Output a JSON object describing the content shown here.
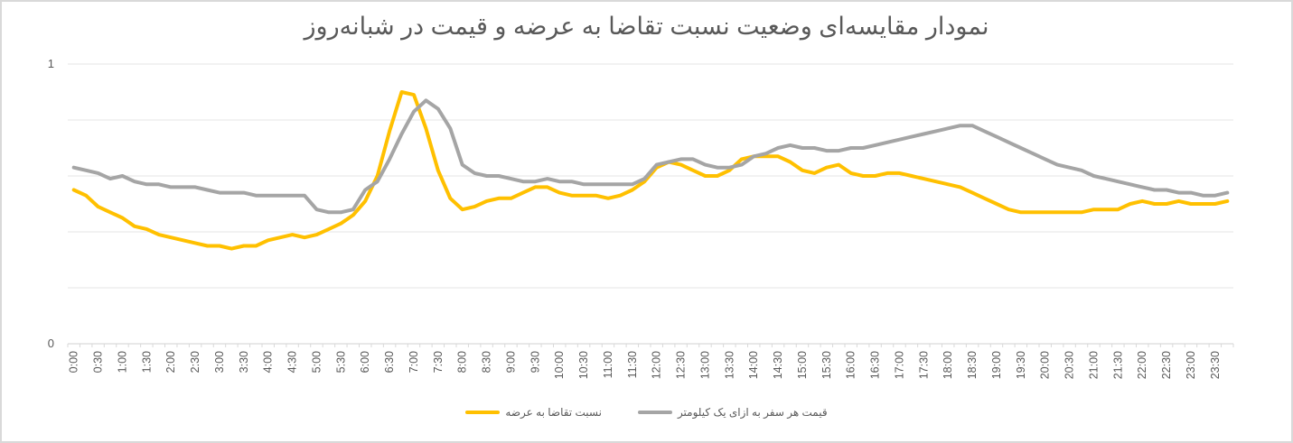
{
  "chart_data": {
    "type": "line",
    "title": "نمودار مقایسه‌ای وضعیت نسبت تقاضا به عرضه و قیمت در شبانه‌روز",
    "xlabel": "",
    "ylabel": "",
    "ylim": [
      0,
      1
    ],
    "yticks": [
      {
        "value": 0,
        "label": "0"
      },
      {
        "value": 1,
        "label": "1"
      }
    ],
    "grid": true,
    "gridlines": [
      0,
      0.2,
      0.4,
      0.6,
      0.8,
      1
    ],
    "legend_position": "bottom",
    "x_labels": [
      "0:00",
      "0:30",
      "1:00",
      "1:30",
      "2:00",
      "2:30",
      "3:00",
      "3:30",
      "4:00",
      "4:30",
      "5:00",
      "5:30",
      "6:00",
      "6:30",
      "7:00",
      "7:30",
      "8:00",
      "8:30",
      "9:00",
      "9:30",
      "10:00",
      "10:30",
      "11:00",
      "11:30",
      "12:00",
      "12:30",
      "13:00",
      "13:30",
      "14:00",
      "14:30",
      "15:00",
      "15:30",
      "16:00",
      "16:30",
      "17:00",
      "17:30",
      "18:00",
      "18:30",
      "19:00",
      "19:30",
      "20:00",
      "20:30",
      "21:00",
      "21:30",
      "22:00",
      "22:30",
      "23:00",
      "23:30"
    ],
    "x": [
      "0:00",
      "0:15",
      "0:30",
      "0:45",
      "1:00",
      "1:15",
      "1:30",
      "1:45",
      "2:00",
      "2:15",
      "2:30",
      "2:45",
      "3:00",
      "3:15",
      "3:30",
      "3:45",
      "4:00",
      "4:15",
      "4:30",
      "4:45",
      "5:00",
      "5:15",
      "5:30",
      "5:45",
      "6:00",
      "6:15",
      "6:30",
      "6:45",
      "7:00",
      "7:15",
      "7:30",
      "7:45",
      "8:00",
      "8:15",
      "8:30",
      "8:45",
      "9:00",
      "9:15",
      "9:30",
      "9:45",
      "10:00",
      "10:15",
      "10:30",
      "10:45",
      "11:00",
      "11:15",
      "11:30",
      "11:45",
      "12:00",
      "12:15",
      "12:30",
      "12:45",
      "13:00",
      "13:15",
      "13:30",
      "13:45",
      "14:00",
      "14:15",
      "14:30",
      "14:45",
      "15:00",
      "15:15",
      "15:30",
      "15:45",
      "16:00",
      "16:15",
      "16:30",
      "16:45",
      "17:00",
      "17:15",
      "17:30",
      "17:45",
      "18:00",
      "18:15",
      "18:30",
      "18:45",
      "19:00",
      "19:15",
      "19:30",
      "19:45",
      "20:00",
      "20:15",
      "20:30",
      "20:45",
      "21:00",
      "21:15",
      "21:30",
      "21:45",
      "22:00",
      "22:15",
      "22:30",
      "22:45",
      "23:00",
      "23:15",
      "23:30",
      "23:45"
    ],
    "series": [
      {
        "name": "نسبت تقاضا به عرضه",
        "color": "#FFC000",
        "values": [
          0.55,
          0.53,
          0.49,
          0.47,
          0.45,
          0.42,
          0.41,
          0.39,
          0.38,
          0.37,
          0.36,
          0.35,
          0.35,
          0.34,
          0.35,
          0.35,
          0.37,
          0.38,
          0.39,
          0.38,
          0.39,
          0.41,
          0.43,
          0.46,
          0.51,
          0.6,
          0.76,
          0.9,
          0.89,
          0.77,
          0.62,
          0.52,
          0.48,
          0.49,
          0.51,
          0.52,
          0.52,
          0.54,
          0.56,
          0.56,
          0.54,
          0.53,
          0.53,
          0.53,
          0.52,
          0.53,
          0.55,
          0.58,
          0.63,
          0.65,
          0.64,
          0.62,
          0.6,
          0.6,
          0.62,
          0.66,
          0.67,
          0.67,
          0.67,
          0.65,
          0.62,
          0.61,
          0.63,
          0.64,
          0.61,
          0.6,
          0.6,
          0.61,
          0.61,
          0.6,
          0.59,
          0.58,
          0.57,
          0.56,
          0.54,
          0.52,
          0.5,
          0.48,
          0.47,
          0.47,
          0.47,
          0.47,
          0.47,
          0.47,
          0.48,
          0.48,
          0.48,
          0.5,
          0.51,
          0.5,
          0.5,
          0.51,
          0.5,
          0.5,
          0.5,
          0.51
        ]
      },
      {
        "name": "قیمت هر سفر به ازای یک کیلومتر",
        "color": "#A5A5A5",
        "values": [
          0.63,
          0.62,
          0.61,
          0.59,
          0.6,
          0.58,
          0.57,
          0.57,
          0.56,
          0.56,
          0.56,
          0.55,
          0.54,
          0.54,
          0.54,
          0.53,
          0.53,
          0.53,
          0.53,
          0.53,
          0.48,
          0.47,
          0.47,
          0.48,
          0.55,
          0.58,
          0.66,
          0.75,
          0.83,
          0.87,
          0.84,
          0.77,
          0.64,
          0.61,
          0.6,
          0.6,
          0.59,
          0.58,
          0.58,
          0.59,
          0.58,
          0.58,
          0.57,
          0.57,
          0.57,
          0.57,
          0.57,
          0.59,
          0.64,
          0.65,
          0.66,
          0.66,
          0.64,
          0.63,
          0.63,
          0.64,
          0.67,
          0.68,
          0.7,
          0.71,
          0.7,
          0.7,
          0.69,
          0.69,
          0.7,
          0.7,
          0.71,
          0.72,
          0.73,
          0.74,
          0.75,
          0.76,
          0.77,
          0.78,
          0.78,
          0.76,
          0.74,
          0.72,
          0.7,
          0.68,
          0.66,
          0.64,
          0.63,
          0.62,
          0.6,
          0.59,
          0.58,
          0.57,
          0.56,
          0.55,
          0.55,
          0.54,
          0.54,
          0.53,
          0.53,
          0.54
        ]
      }
    ]
  },
  "legend": {
    "items": [
      {
        "label": "قیمت هر سفر به ازای یک کیلومتر",
        "color": "#A5A5A5"
      },
      {
        "label": "نسبت تقاضا به عرضه",
        "color": "#FFC000"
      }
    ]
  }
}
